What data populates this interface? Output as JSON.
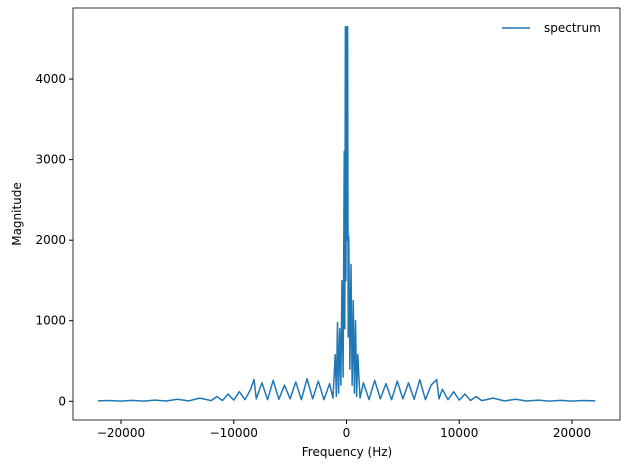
{
  "chart_data": {
    "type": "line",
    "x_label": "Frequency (Hz)",
    "y_label": "Magnitude",
    "x": [
      -22050,
      -21000,
      -20000,
      -19000,
      -18000,
      -17000,
      -16000,
      -15000,
      -14000,
      -13000,
      -12000,
      -11500,
      -11000,
      -10500,
      -10000,
      -9500,
      -9000,
      -8500,
      -8200,
      -8000,
      -7500,
      -7000,
      -6500,
      -6000,
      -5500,
      -5000,
      -4500,
      -4000,
      -3500,
      -3000,
      -2500,
      -2000,
      -1500,
      -1200,
      -1000,
      -900,
      -800,
      -700,
      -600,
      -500,
      -400,
      -300,
      -200,
      -150,
      -100,
      -50,
      0,
      50,
      100,
      150,
      200,
      300,
      400,
      500,
      600,
      700,
      800,
      900,
      1000,
      1200,
      1500,
      2000,
      2500,
      3000,
      3500,
      4000,
      4500,
      5000,
      5500,
      6000,
      6500,
      7000,
      7500,
      8000,
      8200,
      8500,
      9000,
      9500,
      10000,
      10500,
      11000,
      11500,
      12000,
      13000,
      14000,
      15000,
      16000,
      17000,
      18000,
      19000,
      20000,
      21000,
      22050
    ],
    "series": [
      {
        "name": "spectrum",
        "color": "#1f77b4",
        "values": [
          5,
          10,
          2,
          12,
          3,
          15,
          4,
          25,
          5,
          40,
          8,
          60,
          10,
          90,
          15,
          120,
          20,
          150,
          270,
          30,
          230,
          20,
          260,
          25,
          200,
          30,
          240,
          20,
          280,
          30,
          250,
          20,
          220,
          40,
          580,
          60,
          980,
          100,
          900,
          200,
          1500,
          300,
          3100,
          900,
          4650,
          1500,
          4650,
          2000,
          4650,
          800,
          2050,
          400,
          1700,
          200,
          1250,
          100,
          1000,
          60,
          580,
          40,
          230,
          20,
          260,
          30,
          220,
          20,
          250,
          30,
          230,
          25,
          270,
          20,
          200,
          270,
          30,
          150,
          20,
          120,
          15,
          90,
          10,
          60,
          8,
          40,
          5,
          25,
          4,
          15,
          3,
          12,
          2,
          10,
          5
        ]
      }
    ],
    "xlim": [
      -24255,
      24255
    ],
    "ylim": [
      -232,
      4882
    ],
    "xticks": [
      {
        "value": -20000,
        "label": "−20000"
      },
      {
        "value": -10000,
        "label": "−10000"
      },
      0,
      10000,
      20000
    ],
    "yticks": [
      0,
      1000,
      2000,
      3000,
      4000
    ],
    "legend": "upper right"
  }
}
